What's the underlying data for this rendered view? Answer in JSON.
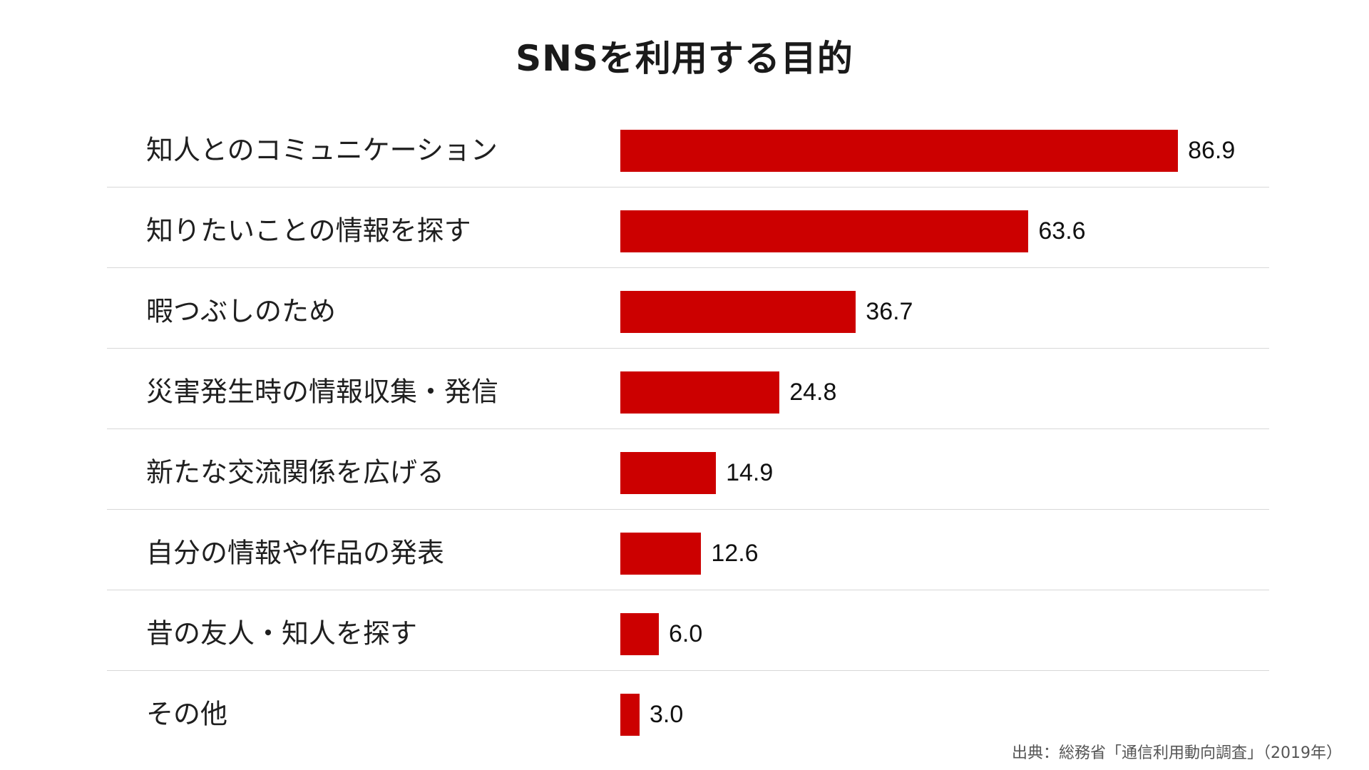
{
  "chart_data": {
    "type": "bar",
    "orientation": "horizontal",
    "title": "SNSを利用する目的",
    "categories": [
      "知人とのコミュニケーション",
      "知りたいことの情報を探す",
      "暇つぶしのため",
      "災害発生時の情報収集・発信",
      "新たな交流関係を広げる",
      "自分の情報や作品の発表",
      "昔の友人・知人を探す",
      "その他"
    ],
    "values": [
      86.9,
      63.6,
      36.7,
      24.8,
      14.9,
      12.6,
      6.0,
      3.0
    ],
    "value_labels": [
      "86.9",
      "63.6",
      "36.7",
      "24.8",
      "14.9",
      "12.6",
      "6.0",
      "3.0"
    ],
    "xlim": [
      0,
      100
    ],
    "bar_color": "#cc0000",
    "grid": false,
    "legend": "none",
    "source": "出典：総務省「通信利用動向調査」（2019年）"
  }
}
